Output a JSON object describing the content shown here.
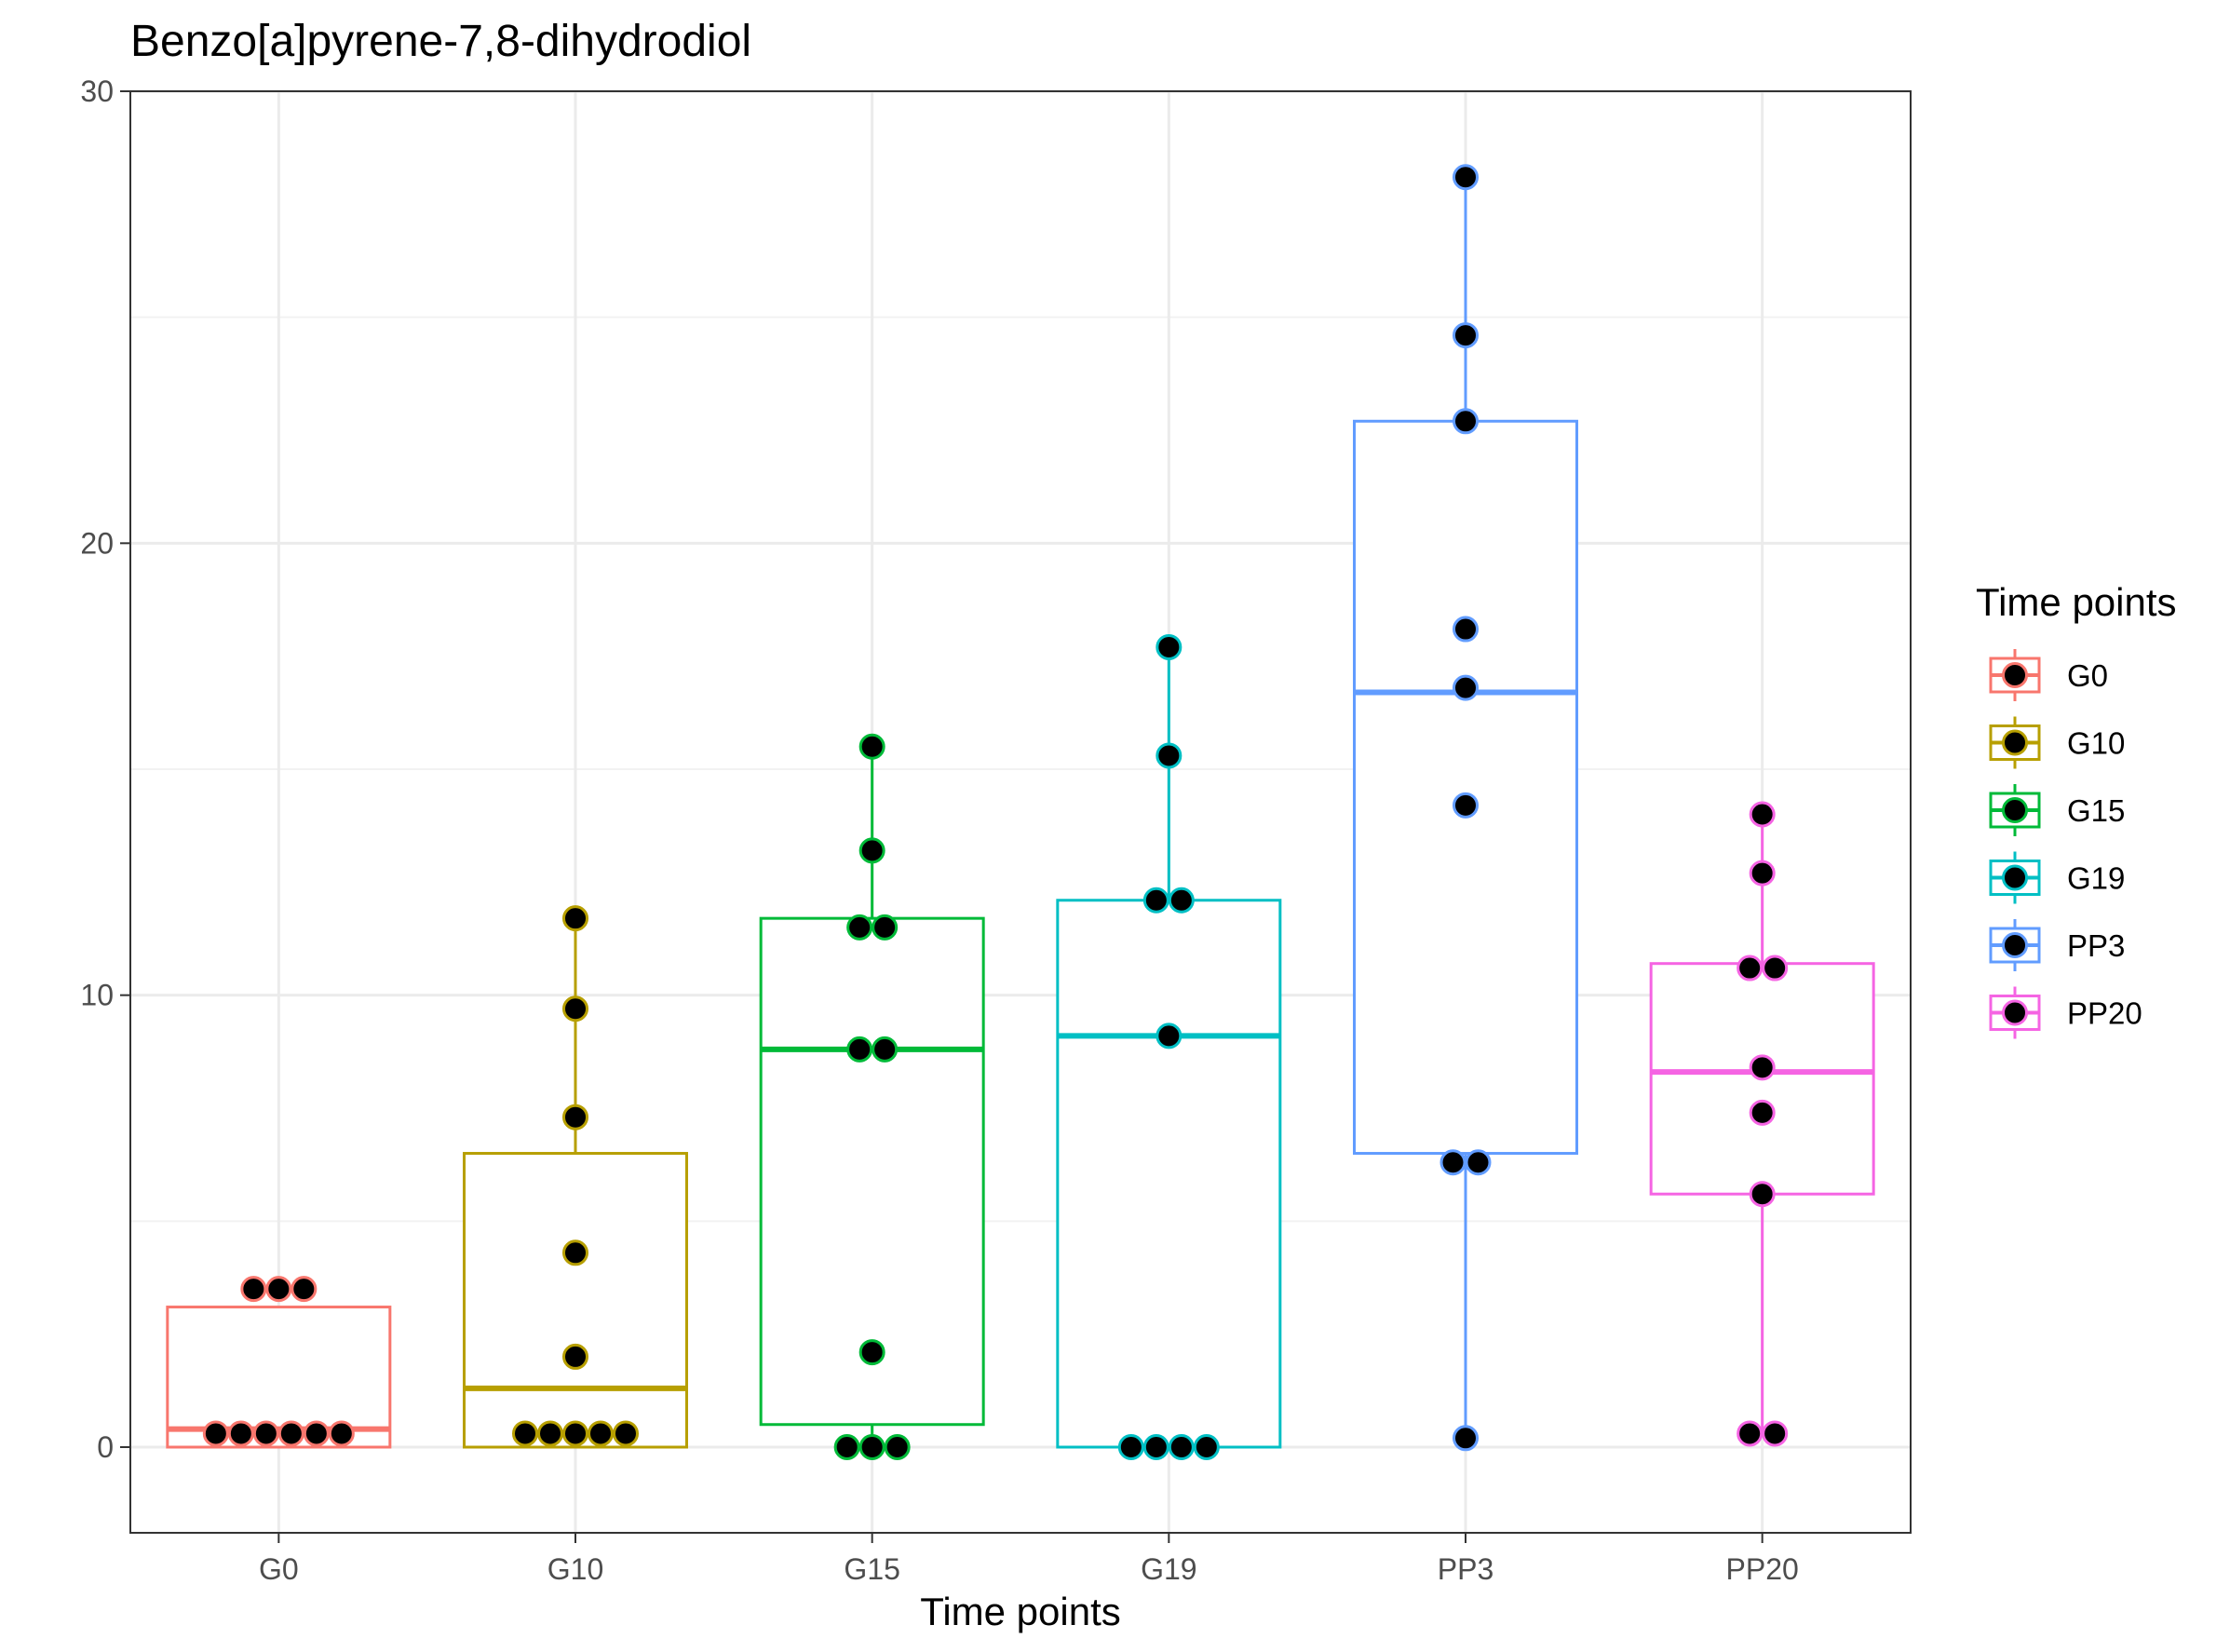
{
  "chart_data": {
    "type": "box",
    "title": "Benzo[a]pyrene-7,8-dihydrodiol",
    "xlabel": "Time points",
    "ylabel": "",
    "ylim": [
      -1.9,
      30
    ],
    "yticks": [
      0,
      10,
      20,
      30
    ],
    "grid": true,
    "legend": {
      "title": "Time points",
      "position": "right"
    },
    "categories": [
      "G0",
      "G10",
      "G15",
      "G19",
      "PP3",
      "PP20"
    ],
    "series": [
      {
        "name": "G0",
        "color": "#F8766D",
        "box": {
          "whisker_low": 0.0,
          "q1": 0.0,
          "median": 0.4,
          "q3": 3.1,
          "whisker_high": 3.1
        },
        "points": [
          0.3,
          0.3,
          0.3,
          0.3,
          0.3,
          0.3,
          3.5,
          3.5,
          3.5
        ]
      },
      {
        "name": "G10",
        "color": "#B79F00",
        "box": {
          "whisker_low": 0.0,
          "q1": 0.0,
          "median": 1.3,
          "q3": 6.5,
          "whisker_high": 11.7
        },
        "points": [
          0.3,
          0.3,
          0.3,
          0.3,
          0.3,
          2.0,
          4.3,
          7.3,
          9.7,
          11.7
        ]
      },
      {
        "name": "G15",
        "color": "#00BA38",
        "box": {
          "whisker_low": 0.0,
          "q1": 0.5,
          "median": 8.8,
          "q3": 11.7,
          "whisker_high": 15.5
        },
        "points": [
          0.0,
          0.0,
          0.0,
          2.1,
          8.8,
          8.8,
          11.5,
          11.5,
          13.2,
          15.5
        ]
      },
      {
        "name": "G19",
        "color": "#00BFC4",
        "box": {
          "whisker_low": 0.0,
          "q1": 0.0,
          "median": 9.1,
          "q3": 12.1,
          "whisker_high": 17.7
        },
        "points": [
          0.0,
          0.0,
          0.0,
          0.0,
          9.1,
          12.1,
          12.1,
          15.3,
          17.7
        ]
      },
      {
        "name": "PP3",
        "color": "#619CFF",
        "box": {
          "whisker_low": 0.2,
          "q1": 6.5,
          "median": 16.7,
          "q3": 22.7,
          "whisker_high": 28.1
        },
        "points": [
          0.2,
          6.3,
          6.3,
          14.2,
          16.8,
          18.1,
          22.7,
          24.6,
          28.1
        ]
      },
      {
        "name": "PP20",
        "color": "#F564E3",
        "box": {
          "whisker_low": 0.3,
          "q1": 5.6,
          "median": 8.3,
          "q3": 10.7,
          "whisker_high": 14.0
        },
        "points": [
          0.3,
          0.3,
          5.6,
          7.4,
          8.4,
          10.6,
          10.6,
          12.7,
          14.0
        ]
      }
    ]
  }
}
